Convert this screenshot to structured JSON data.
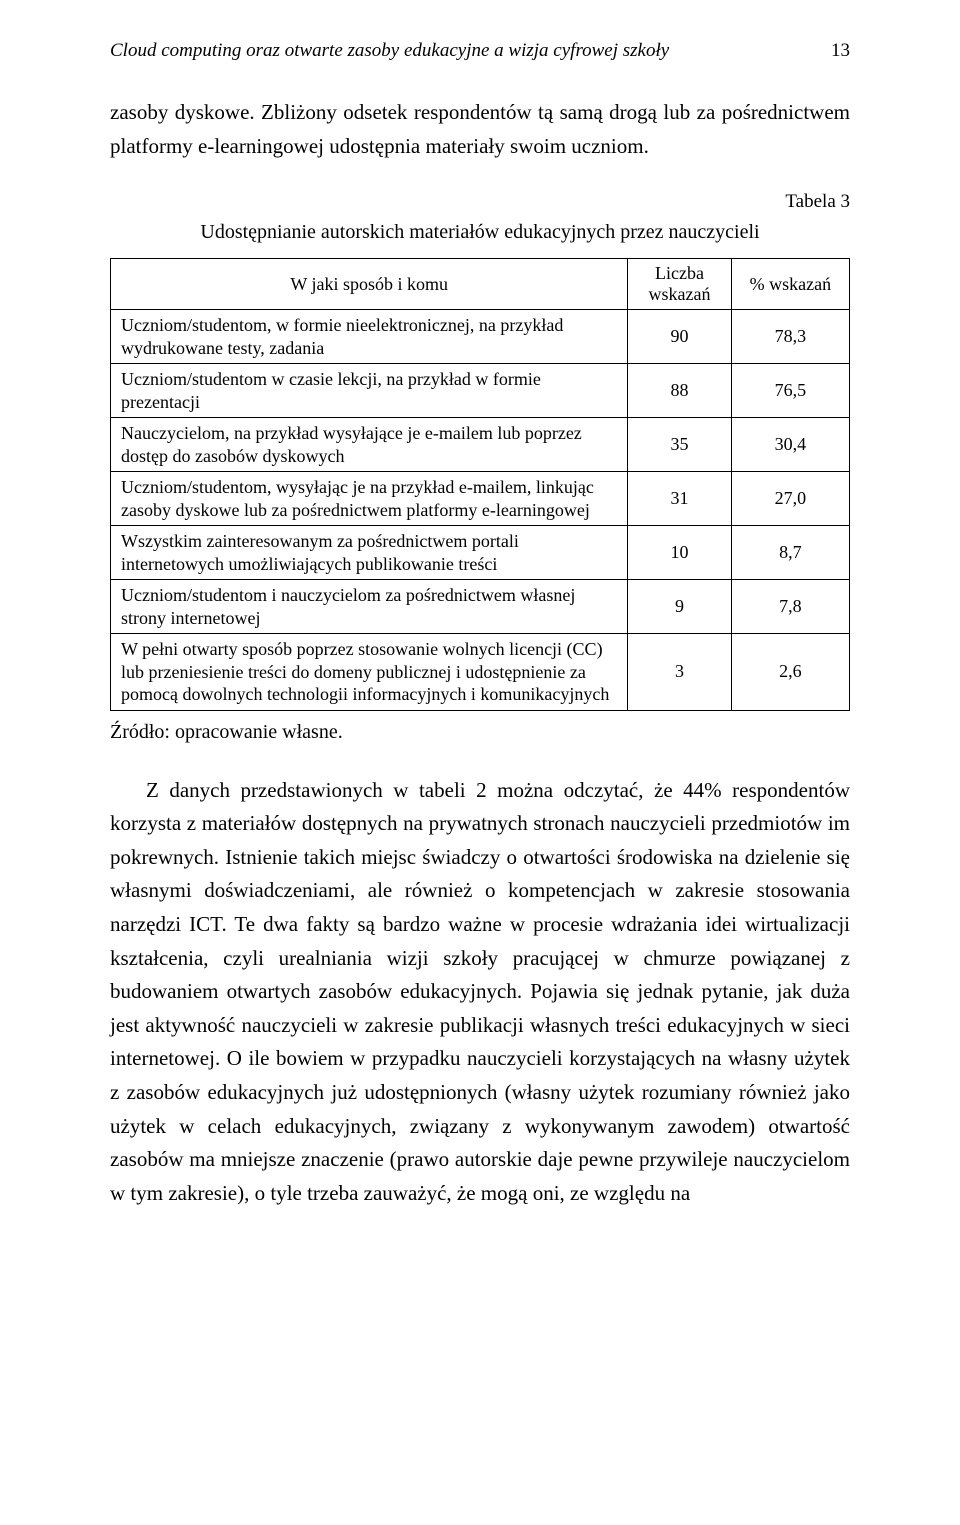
{
  "header": {
    "running_title": "Cloud computing oraz otwarte zasoby edukacyjne a wizja cyfrowej szkoły",
    "page_number": "13"
  },
  "para1": "zasoby dyskowe. Zbliżony odsetek respondentów tą samą drogą lub za pośrednictwem platformy e-learningowej udostępnia materiały swoim uczniom.",
  "table": {
    "label": "Tabela 3",
    "caption": "Udostępnianie autorskich materiałów edukacyjnych przez nauczycieli",
    "columns": [
      "W jaki sposób i komu",
      "Liczba wskazań",
      "% wskazań"
    ],
    "rows": [
      [
        "Uczniom/studentom, w formie nieelektronicznej, na przykład wydrukowane testy, zadania",
        "90",
        "78,3"
      ],
      [
        "Uczniom/studentom w czasie lekcji, na przykład w formie prezentacji",
        "88",
        "76,5"
      ],
      [
        "Nauczycielom, na przykład wysyłające je e-mailem lub poprzez dostęp do zasobów dyskowych",
        "35",
        "30,4"
      ],
      [
        "Uczniom/studentom, wysyłając je na przykład e-mailem, linkując zasoby dyskowe lub za pośrednictwem platformy e-learningowej",
        "31",
        "27,0"
      ],
      [
        "Wszystkim zainteresowanym za pośrednictwem portali internetowych umożliwiających publikowanie treści",
        "10",
        "8,7"
      ],
      [
        "Uczniom/studentom i nauczycielom za pośrednictwem własnej strony internetowej",
        "9",
        "7,8"
      ],
      [
        "W pełni otwarty sposób poprzez stosowanie wolnych licencji (CC) lub przeniesienie treści do domeny publicznej i udostępnienie za pomocą dowolnych technologii informacyjnych i komunikacyjnych",
        "3",
        "2,6"
      ]
    ],
    "col_widths": [
      "70%",
      "14%",
      "16%"
    ],
    "border_color": "#000000",
    "font_size": 18
  },
  "source_line": "Źródło: opracowanie własne.",
  "para2": "Z danych przedstawionych w tabeli 2 można odczytać, że 44% respondentów korzysta z materiałów dostępnych na prywatnych stronach nauczycieli przedmiotów im pokrewnych. Istnienie takich miejsc świadczy o otwartości środowiska na dzielenie się własnymi doświadczeniami, ale również o kompetencjach w zakresie stosowania narzędzi ICT. Te dwa fakty są bardzo ważne w procesie wdrażania idei wirtualizacji kształcenia, czyli urealniania wizji szkoły pracującej w chmurze powiązanej z budowaniem otwartych zasobów edukacyjnych. Pojawia się jednak pytanie, jak duża jest aktywność nauczycieli w zakresie publikacji własnych treści edukacyjnych w sieci internetowej. O ile bowiem w przypadku nauczycieli korzystających na własny użytek z zasobów edukacyjnych już udostępnionych (własny użytek rozumiany również jako użytek w celach edukacyjnych, związany z wykonywanym zawodem) otwartość zasobów ma mniejsze znaczenie (prawo autorskie daje pewne przywileje nauczycielom w tym zakresie), o tyle trzeba zauważyć, że mogą oni, ze względu na"
}
